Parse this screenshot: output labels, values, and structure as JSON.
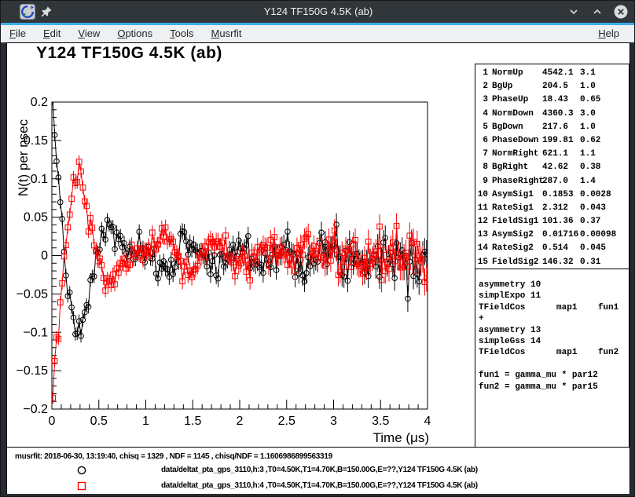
{
  "window": {
    "title": "Y124 TF150G 4.5K (ab)"
  },
  "menubar": {
    "items": [
      "File",
      "Edit",
      "View",
      "Options",
      "Tools",
      "Musrfit"
    ],
    "right_item": "Help"
  },
  "plot_title": "Y124 TF150G 4.5K (ab)",
  "chart_data": {
    "type": "scatter",
    "title": "Y124 TF150G 4.5K (ab)",
    "xlabel": "Time (μs)",
    "ylabel": "N(t) per nsec",
    "xlim": [
      0,
      4
    ],
    "ylim": [
      -0.2,
      0.2
    ],
    "x_major_step": 0.5,
    "x_minor_step": 0.1,
    "y_major_step": 0.05,
    "y_minor_step": 0.01,
    "x_tick_labels": [
      "0",
      "0.5",
      "1",
      "1.5",
      "2",
      "2.5",
      "3",
      "3.5",
      "4"
    ],
    "y_tick_labels": [
      "0.2",
      "0.15",
      "0.1",
      "0.05",
      "0",
      "−0.05",
      "−0.1",
      "−0.15",
      "−0.2"
    ],
    "grid": false,
    "legend_position": "bottom-strip",
    "sampling": {
      "t_start": 0.01,
      "dt": 0.02,
      "n": 200,
      "noise_sigma0": 0.008,
      "noise_tau": 5.0
    },
    "series": [
      {
        "name": "data/deltat_pta_gps_3110,h:3 ,T0=4.50K,T1=4.70K,B=150.00G,E=??,Y124 TF150G 4.5K (ab)",
        "marker": "circle",
        "color": "#000000",
        "seed": 7,
        "model": {
          "A1": 0.1853,
          "lambda1": 2.312,
          "freq1_MHz": 1.3738,
          "phase1_deg": 18.43,
          "A2": 0.01716,
          "sigma2": 0.514,
          "freq2_MHz": 1.9832,
          "phase2_deg": 18.43
        }
      },
      {
        "name": "data/deltat_pta_gps_3110,h:4 ,T0=4.50K,T1=4.70K,B=150.00G,E=??,Y124 TF150G 4.5K (ab)",
        "marker": "square",
        "color": "#ff0000",
        "seed": 13,
        "model": {
          "A1": 0.1853,
          "lambda1": 2.312,
          "freq1_MHz": 1.3738,
          "phase1_deg": 199.81,
          "A2": 0.01716,
          "sigma2": 0.514,
          "freq2_MHz": 1.9832,
          "phase2_deg": 199.81
        }
      }
    ]
  },
  "params": {
    "rows": [
      {
        "n": "1",
        "name": "NormUp",
        "value": "4542.1",
        "error": "3.1"
      },
      {
        "n": "2",
        "name": "BgUp",
        "value": "204.5",
        "error": "1.0"
      },
      {
        "n": "3",
        "name": "PhaseUp",
        "value": "18.43",
        "error": "0.65"
      },
      {
        "n": "4",
        "name": "NormDown",
        "value": "4360.3",
        "error": "3.0"
      },
      {
        "n": "5",
        "name": "BgDown",
        "value": "217.6",
        "error": "1.0"
      },
      {
        "n": "6",
        "name": "PhaseDown",
        "value": "199.81",
        "error": "0.62"
      },
      {
        "n": "7",
        "name": "NormRight",
        "value": "621.1",
        "error": "1.1"
      },
      {
        "n": "8",
        "name": "BgRight",
        "value": "42.62",
        "error": "0.38"
      },
      {
        "n": "9",
        "name": "PhaseRight",
        "value": "287.0",
        "error": "1.4"
      },
      {
        "n": "10",
        "name": "AsymSig1",
        "value": "0.1853",
        "error": "0.0028"
      },
      {
        "n": "11",
        "name": "RateSig1",
        "value": "2.312",
        "error": "0.043"
      },
      {
        "n": "12",
        "name": "FieldSig1",
        "value": "101.36",
        "error": "0.37"
      },
      {
        "n": "13",
        "name": "AsymSig2",
        "value": "0.01716",
        "error": "0.00098"
      },
      {
        "n": "14",
        "name": "RateSig2",
        "value": "0.514",
        "error": "0.045"
      },
      {
        "n": "15",
        "name": "FieldSig2",
        "value": "146.32",
        "error": "0.31"
      }
    ]
  },
  "theory": {
    "lines": [
      "asymmetry 10",
      "simplExpo 11",
      "TFieldCos      map1    fun1",
      "+",
      "asymmetry 13",
      "simpleGss 14",
      "TFieldCos      map1    fun2",
      "",
      "fun1 = gamma_mu * par12",
      "fun2 = gamma_mu * par15"
    ]
  },
  "status": {
    "fit_info": "musrfit: 2018-06-30, 13:19:40, chisq = 1329 , NDF = 1145 , chisq/NDF = 1.1606986899563319",
    "legend": [
      {
        "marker": "circle",
        "color": "#000000",
        "text": "data/deltat_pta_gps_3110,h:3 ,T0=4.50K,T1=4.70K,B=150.00G,E=??,Y124 TF150G 4.5K (ab)"
      },
      {
        "marker": "square",
        "color": "#ff0000",
        "text": "data/deltat_pta_gps_3110,h:4 ,T0=4.50K,T1=4.70K,B=150.00G,E=??,Y124 TF150G 4.5K (ab)"
      }
    ]
  },
  "colors": {
    "accent": "#3daee9",
    "series1": "#000000",
    "series2": "#ff0000",
    "titlebar": "#31363b"
  }
}
